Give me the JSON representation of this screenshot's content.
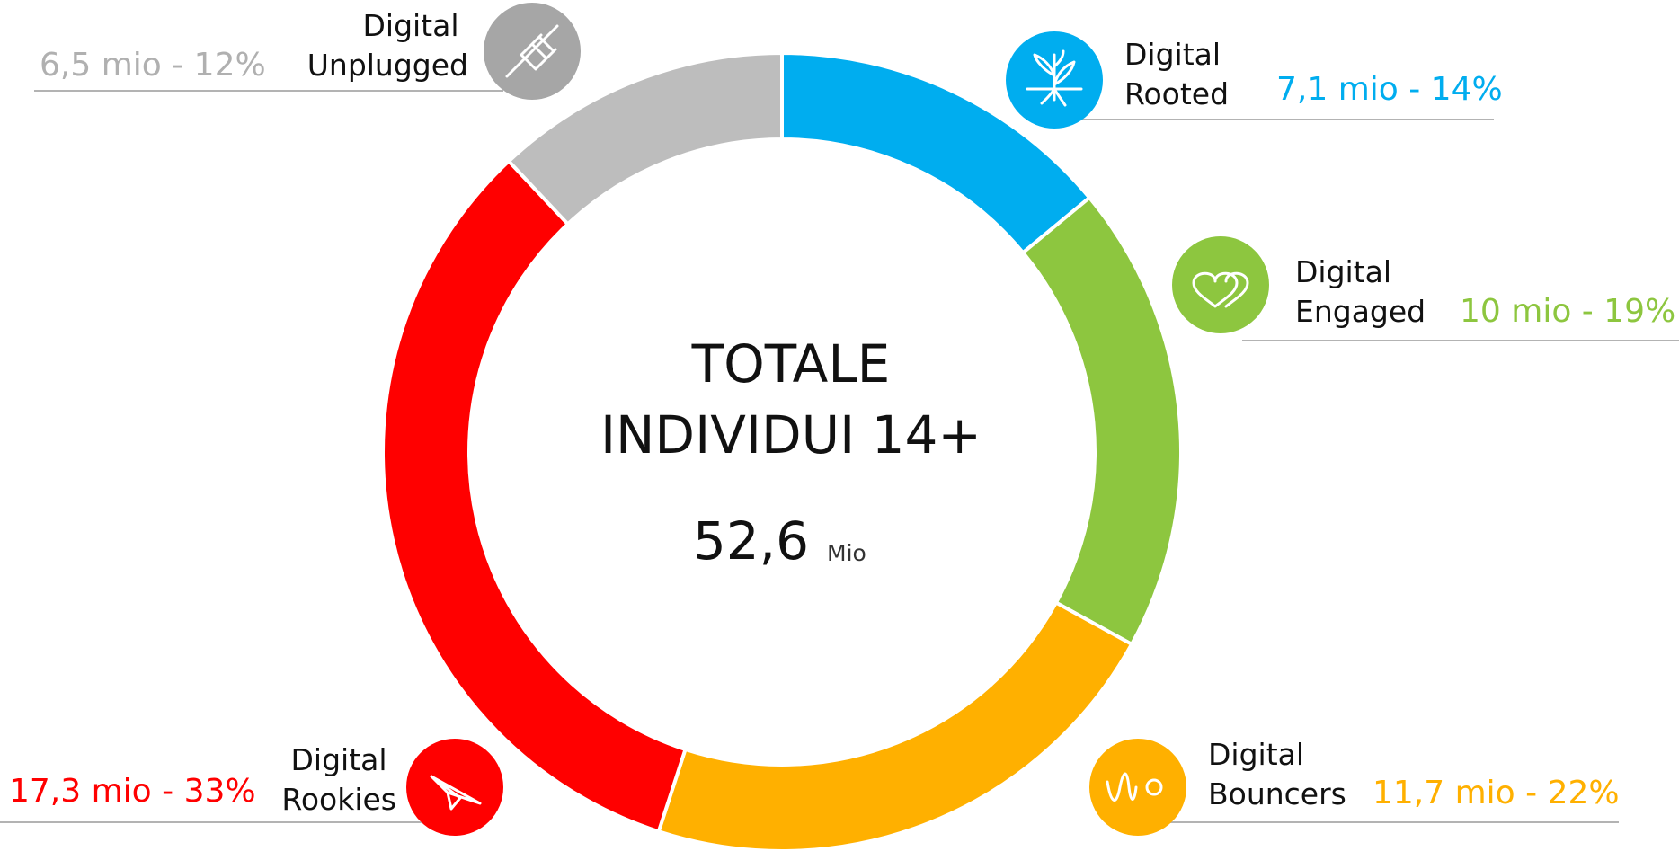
{
  "chart_data": {
    "type": "donut",
    "center_title": [
      "TOTALE",
      "INDIVIDUI 14+"
    ],
    "total_label": "52,6",
    "total_unit": "Mio",
    "categories": [
      "Digital Rooted",
      "Digital Engaged",
      "Digital Bouncers",
      "Digital Rookies",
      "Digital Unplugged"
    ],
    "values": [
      14,
      19,
      22,
      33,
      12
    ],
    "value_labels": [
      "7,1 mio - 14%",
      "10 mio - 19%",
      "11,7 mio - 22%",
      "17,3 mio - 33%",
      "6,5 mio - 12%"
    ],
    "colors": [
      "#00adef",
      "#8dc63f",
      "#ffb000",
      "#ff0000",
      "#bdbdbd"
    ]
  }
}
